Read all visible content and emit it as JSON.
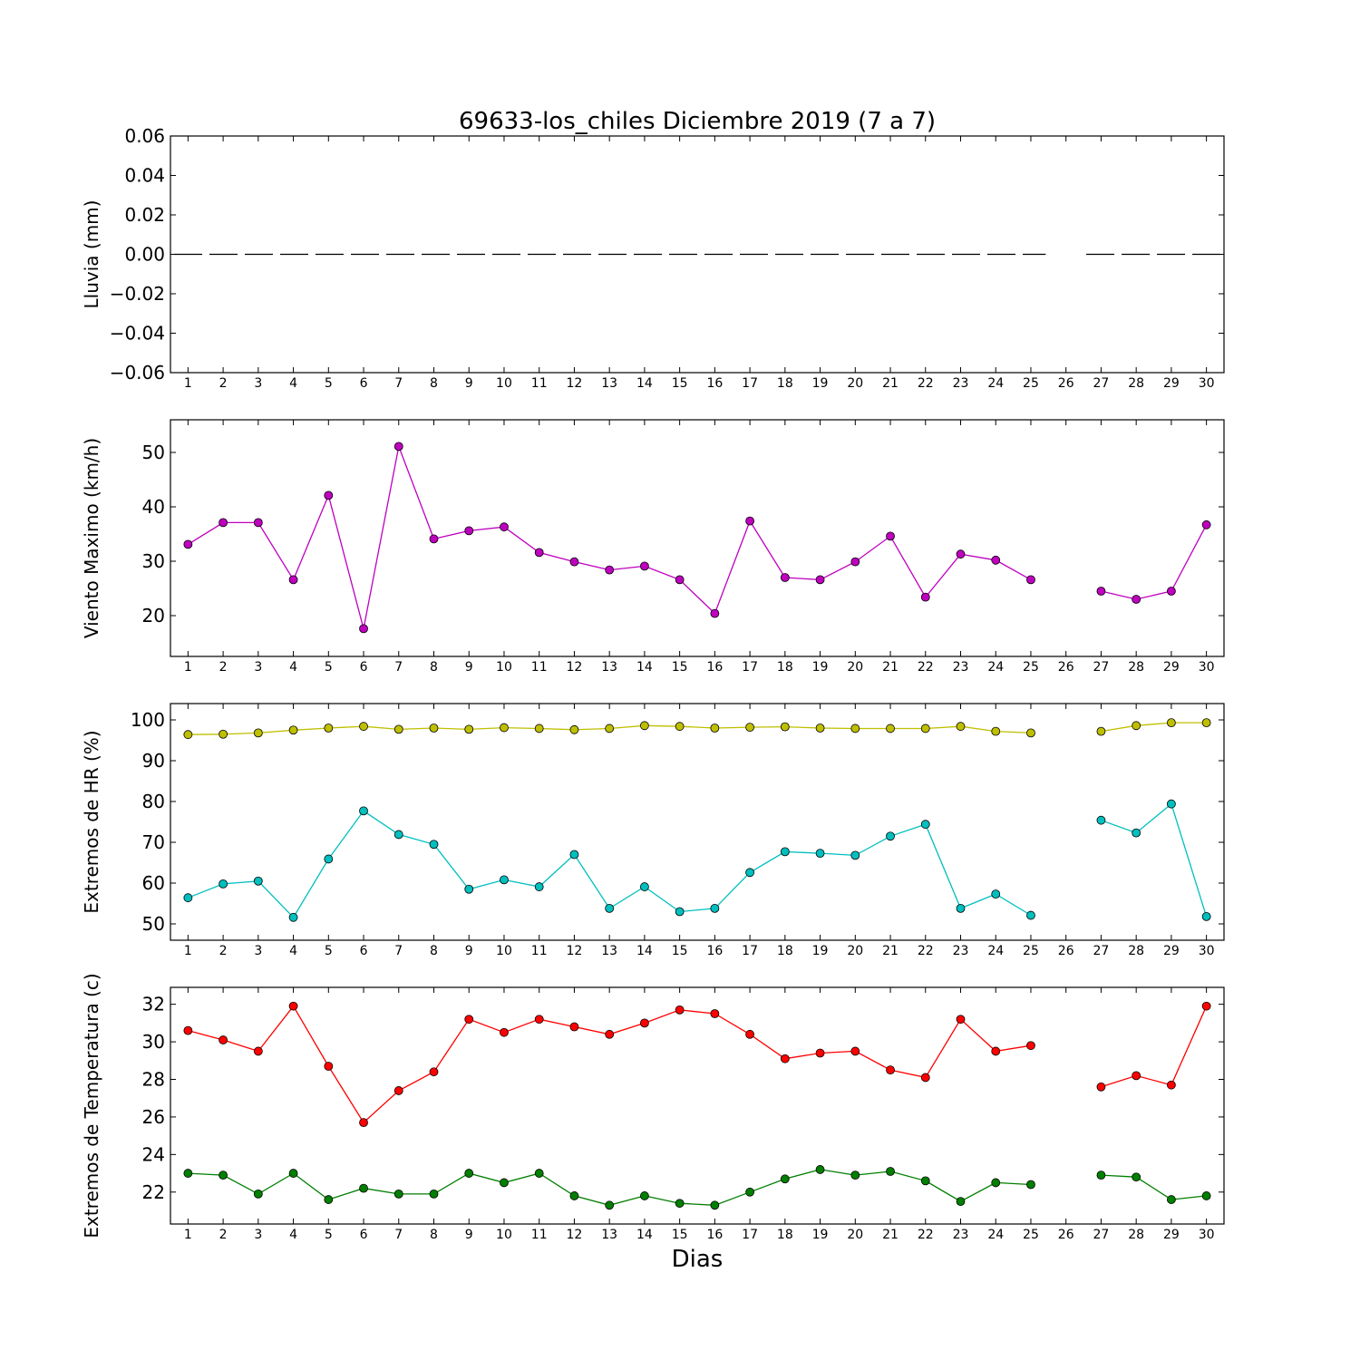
{
  "chart_data": {
    "title": "69633-los_chiles Diciembre 2019  (7 a 7)",
    "xlabel": "Dias",
    "categories": [
      "1",
      "2",
      "3",
      "4",
      "5",
      "6",
      "7",
      "8",
      "9",
      "10",
      "11",
      "12",
      "13",
      "14",
      "15",
      "16",
      "17",
      "18",
      "19",
      "20",
      "21",
      "22",
      "23",
      "24",
      "25",
      "26",
      "27",
      "28",
      "29",
      "30"
    ],
    "panels": [
      {
        "id": "lluvia",
        "type": "line",
        "ylabel": "Lluvia (mm)",
        "ylim": [
          -0.06,
          0.06
        ],
        "yticks": [
          -0.06,
          -0.04,
          -0.02,
          0.0,
          0.02,
          0.04,
          0.06
        ],
        "ytick_labels": [
          "−0.06",
          "−0.04",
          "−0.02",
          "0.00",
          "0.02",
          "0.04",
          "0.06"
        ],
        "series": [
          {
            "color": "#000000",
            "style": "dashed",
            "marker": false,
            "values": [
              0,
              0,
              0,
              0,
              0,
              0,
              0,
              0,
              0,
              0,
              0,
              0,
              0,
              0,
              0,
              0,
              0,
              0,
              0,
              0,
              0,
              0,
              0,
              0,
              0,
              null,
              0,
              0,
              0,
              0
            ]
          }
        ]
      },
      {
        "id": "viento",
        "type": "line",
        "ylabel": "Viento Maximo (km/h)",
        "ylim": [
          12.5,
          56
        ],
        "yticks": [
          20,
          30,
          40,
          50
        ],
        "ytick_labels": [
          "20",
          "30",
          "40",
          "50"
        ],
        "series": [
          {
            "color": "#bf00bf",
            "style": "solid",
            "marker": true,
            "values": [
              33.1,
              37.1,
              37.1,
              26.6,
              42.1,
              17.6,
              51.1,
              34.1,
              35.6,
              36.3,
              31.6,
              29.9,
              28.4,
              29.1,
              26.6,
              20.4,
              37.4,
              27.0,
              26.6,
              29.9,
              34.6,
              23.4,
              31.3,
              30.2,
              26.6,
              null,
              24.5,
              23.0,
              24.5,
              36.7
            ]
          }
        ]
      },
      {
        "id": "hr",
        "type": "line",
        "ylabel": "Extremos de HR (%)",
        "ylim": [
          46,
          104
        ],
        "yticks": [
          50,
          60,
          70,
          80,
          90,
          100
        ],
        "ytick_labels": [
          "50",
          "60",
          "70",
          "80",
          "90",
          "100"
        ],
        "series": [
          {
            "color": "#bfbf00",
            "style": "solid",
            "marker": true,
            "values": [
              96.4,
              96.5,
              96.8,
              97.5,
              98.0,
              98.4,
              97.7,
              98.0,
              97.7,
              98.1,
              97.9,
              97.6,
              97.9,
              98.6,
              98.4,
              98.0,
              98.2,
              98.3,
              98.0,
              97.9,
              97.9,
              97.9,
              98.4,
              97.2,
              96.8,
              null,
              97.2,
              98.6,
              99.3,
              99.3
            ]
          },
          {
            "color": "#00bfbf",
            "style": "solid",
            "marker": true,
            "values": [
              56.4,
              59.8,
              60.5,
              51.6,
              65.9,
              77.7,
              71.9,
              69.5,
              58.5,
              60.8,
              59.1,
              67.0,
              53.8,
              59.1,
              53.0,
              53.8,
              62.6,
              67.7,
              67.3,
              66.8,
              71.5,
              74.4,
              53.8,
              57.3,
              52.1,
              null,
              75.4,
              72.3,
              79.4,
              51.8
            ]
          }
        ]
      },
      {
        "id": "temperatura",
        "type": "line",
        "ylabel": "Extremos de Temperatura (c)",
        "ylim": [
          20.3,
          32.9
        ],
        "yticks": [
          22,
          24,
          26,
          28,
          30,
          32
        ],
        "ytick_labels": [
          "22",
          "24",
          "26",
          "28",
          "30",
          "32"
        ],
        "series": [
          {
            "color": "#ff0000",
            "style": "solid",
            "marker": true,
            "values": [
              30.6,
              30.1,
              29.5,
              31.9,
              28.7,
              25.7,
              27.4,
              28.4,
              31.2,
              30.5,
              31.2,
              30.8,
              30.4,
              31.0,
              31.7,
              31.5,
              30.4,
              29.1,
              29.4,
              29.5,
              28.5,
              28.1,
              31.2,
              29.5,
              29.8,
              null,
              27.6,
              28.2,
              27.7,
              31.9
            ]
          },
          {
            "color": "#007f00",
            "style": "solid",
            "marker": true,
            "values": [
              23.0,
              22.9,
              21.9,
              23.0,
              21.6,
              22.2,
              21.9,
              21.9,
              23.0,
              22.5,
              23.0,
              21.8,
              21.3,
              21.8,
              21.4,
              21.3,
              22.0,
              22.7,
              23.2,
              22.9,
              23.1,
              22.6,
              21.5,
              22.5,
              22.4,
              null,
              22.9,
              22.8,
              21.6,
              21.8
            ]
          }
        ]
      }
    ]
  }
}
